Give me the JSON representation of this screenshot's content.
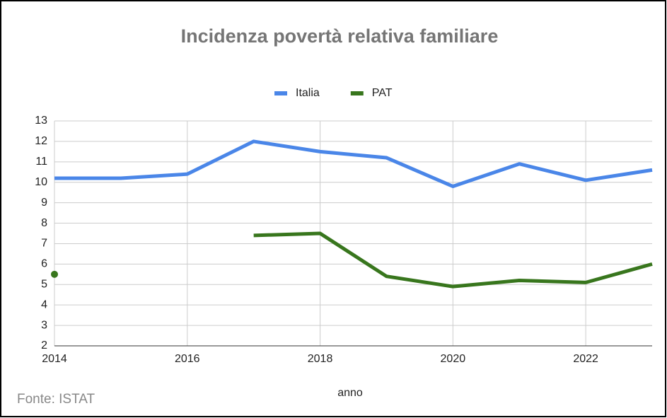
{
  "chart_data": {
    "type": "line",
    "title": "Incidenza povertà relativa familiare",
    "x": [
      2014,
      2015,
      2016,
      2017,
      2018,
      2019,
      2020,
      2021,
      2022,
      2023
    ],
    "series": [
      {
        "name": "Italia",
        "color": "#4a86e8",
        "values": [
          10.2,
          10.2,
          10.4,
          12.0,
          11.5,
          11.2,
          9.8,
          10.9,
          10.1,
          10.6
        ]
      },
      {
        "name": "PAT",
        "color": "#38761d",
        "values": [
          5.5,
          null,
          null,
          7.4,
          7.5,
          5.4,
          4.9,
          5.2,
          5.1,
          6.0
        ]
      }
    ],
    "xlim": [
      2014,
      2023
    ],
    "xticks": [
      2014,
      2016,
      2018,
      2020,
      2022
    ],
    "ylim": [
      2,
      13
    ],
    "yticks": [
      2,
      3,
      4,
      5,
      6,
      7,
      8,
      9,
      10,
      11,
      12,
      13
    ],
    "x_label": "anno",
    "source": "Fonte: ISTAT",
    "grid": true,
    "legend": "top"
  }
}
